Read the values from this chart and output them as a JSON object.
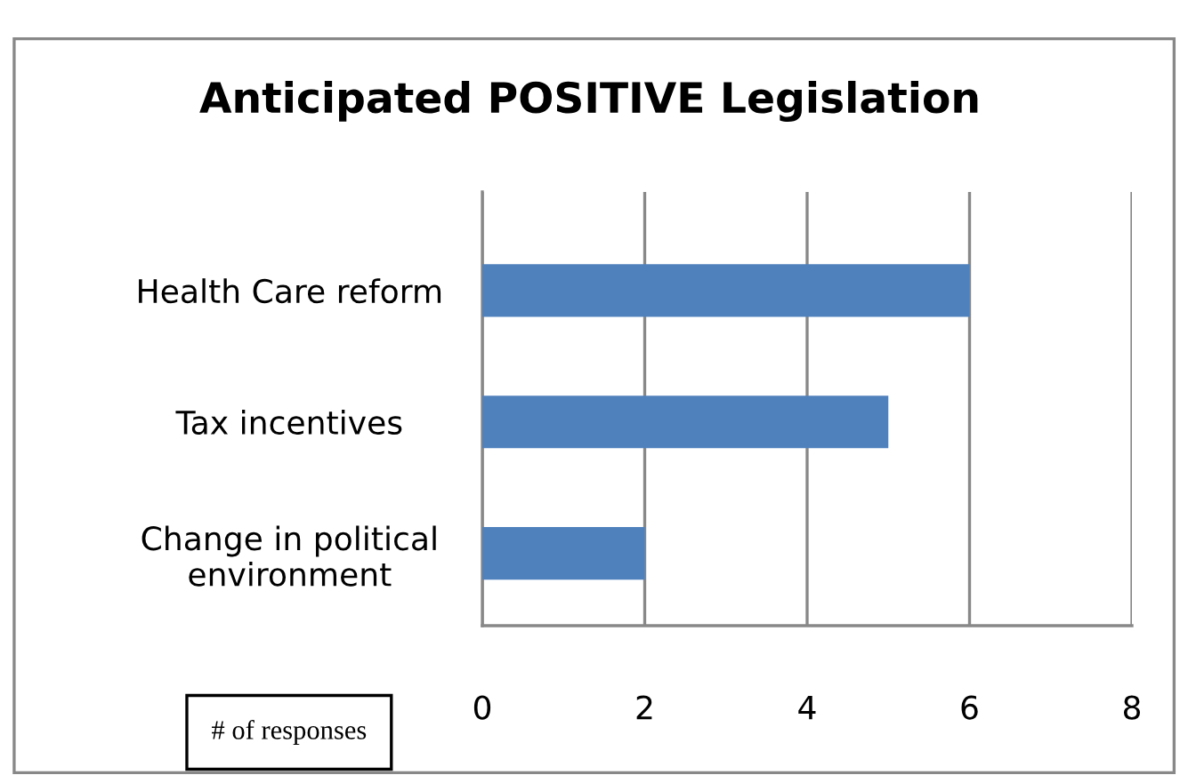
{
  "chart_data": {
    "type": "bar",
    "orientation": "horizontal",
    "title": "Anticipated POSITIVE Legislation",
    "xlabel": "# of responses",
    "categories": [
      "Health Care reform",
      "Tax incentives",
      "Change in political\nenvironment"
    ],
    "values": [
      6,
      5,
      2
    ],
    "color": "#4f81bd",
    "xlim": [
      0,
      8
    ],
    "xticks": [
      0,
      2,
      4,
      6,
      8
    ],
    "grid": "x"
  }
}
